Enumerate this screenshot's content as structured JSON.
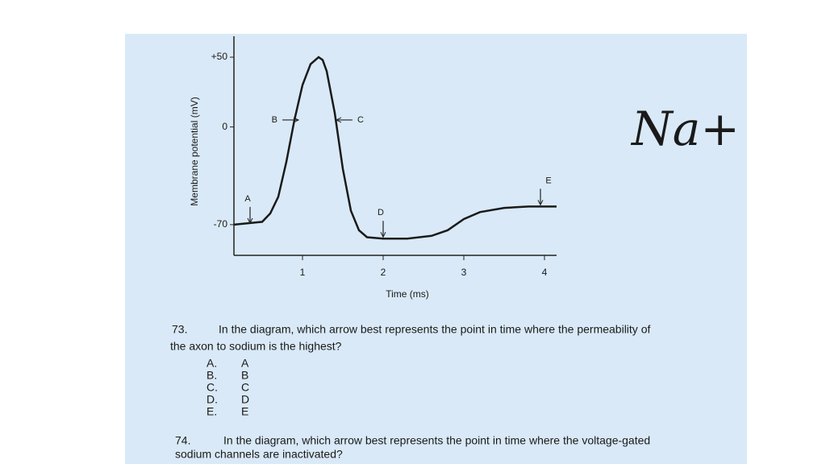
{
  "chart_data": {
    "type": "line",
    "y_label": "Membrane potential (mV)",
    "x_label": "Time (ms)",
    "x": [
      0.15,
      0.5,
      0.6,
      0.7,
      0.8,
      0.9,
      1.0,
      1.1,
      1.2,
      1.25,
      1.3,
      1.4,
      1.5,
      1.6,
      1.7,
      1.8,
      2.0,
      2.3,
      2.6,
      2.8,
      3.0,
      3.2,
      3.5,
      3.8,
      4.0,
      4.15
    ],
    "series": [
      {
        "name": "Membrane potential",
        "color": "#1a1a1a",
        "values": [
          -70,
          -68,
          -62,
          -50,
          -25,
          5,
          30,
          45,
          50,
          48,
          40,
          10,
          -30,
          -60,
          -74,
          -79,
          -80,
          -80,
          -78,
          -74,
          -66,
          -61,
          -58,
          -57,
          -57,
          -57
        ]
      }
    ],
    "xlim": [
      0.15,
      4.15
    ],
    "ylim": [
      -92,
      65
    ],
    "xticks": [
      1,
      2,
      3,
      4
    ],
    "yticks": [
      {
        "value": 50,
        "label": "+50"
      },
      0,
      -70
    ],
    "markers": [
      {
        "label": "A",
        "x": 0.35,
        "y": -70,
        "direction": "down"
      },
      {
        "label": "B",
        "x": 0.95,
        "y": 5,
        "direction": "right"
      },
      {
        "label": "C",
        "x": 1.42,
        "y": 5,
        "direction": "left"
      },
      {
        "label": "D",
        "x": 2.0,
        "y": -80,
        "direction": "down"
      },
      {
        "label": "E",
        "x": 3.95,
        "y": -57,
        "direction": "down"
      }
    ]
  },
  "annotation": "Na+",
  "questions": [
    {
      "number": "73.",
      "text_line1": "In the diagram, which arrow best represents the point in time where the permeability of",
      "text_line2": "the axon to sodium is the highest?",
      "options": [
        {
          "letter": "A.",
          "answer": "A"
        },
        {
          "letter": "B.",
          "answer": "B"
        },
        {
          "letter": "C.",
          "answer": "C"
        },
        {
          "letter": "D.",
          "answer": "D"
        },
        {
          "letter": "E.",
          "answer": "E"
        }
      ]
    },
    {
      "number": "74.",
      "text_line1": "In the diagram, which arrow best represents the point in time where the voltage-gated",
      "text_line2": "sodium channels are inactivated?"
    }
  ]
}
